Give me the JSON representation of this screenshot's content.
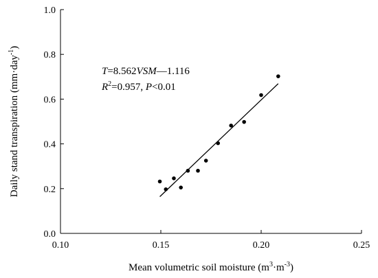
{
  "chart_data": {
    "type": "scatter",
    "xlabel": {
      "main": "Mean volumetric soil moisture (m",
      "sup1": "3",
      "mid": "·m",
      "sup2": "-3",
      "end": ")"
    },
    "ylabel": {
      "main": "Daily stand transpiration (mm·day",
      "sup": "-1",
      "end": ")"
    },
    "xlim": [
      0.1,
      0.25
    ],
    "ylim": [
      0.0,
      1.0
    ],
    "xticks": [
      "0.10",
      "0.15",
      "0.20",
      "0.25"
    ],
    "yticks": [
      "0.0",
      "0.2",
      "0.4",
      "0.6",
      "0.8",
      "1.0"
    ],
    "grid": false,
    "points": [
      {
        "x": 0.1495,
        "y": 0.232
      },
      {
        "x": 0.1525,
        "y": 0.197
      },
      {
        "x": 0.1565,
        "y": 0.246
      },
      {
        "x": 0.16,
        "y": 0.205
      },
      {
        "x": 0.1635,
        "y": 0.28
      },
      {
        "x": 0.1685,
        "y": 0.28
      },
      {
        "x": 0.1725,
        "y": 0.325
      },
      {
        "x": 0.1785,
        "y": 0.403
      },
      {
        "x": 0.185,
        "y": 0.482
      },
      {
        "x": 0.1915,
        "y": 0.498
      },
      {
        "x": 0.2,
        "y": 0.618
      },
      {
        "x": 0.2085,
        "y": 0.702
      }
    ],
    "fit_line": {
      "slope": 8.562,
      "intercept": -1.116,
      "x_start": 0.1495,
      "x_end": 0.2085
    },
    "annotation": {
      "eq_T": "T",
      "eq_mid": "=8.562",
      "eq_var": "VSM",
      "eq_end": "—1.116",
      "r_R": "R",
      "r_sup": "2",
      "r_mid": "=0.957, ",
      "r_P": "P",
      "r_end": "<0.01"
    }
  }
}
